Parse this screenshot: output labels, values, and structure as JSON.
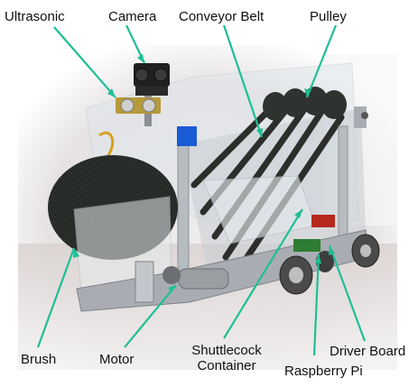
{
  "labels": {
    "ultrasonic": "Ultrasonic",
    "camera": "Camera",
    "conveyor_belt": "Conveyor Belt",
    "pulley": "Pulley",
    "brush": "Brush",
    "motor": "Motor",
    "shuttlecock_line1": "Shuttlecock",
    "shuttlecock_line2": "Container",
    "driver_board": "Driver Board",
    "raspberry_pi": "Raspberry Pi"
  },
  "colors": {
    "arrow": "#1fbf95",
    "label_text": "#111111",
    "brush_bristle": "#2b2f2a",
    "frame_metal": "#a9adb3",
    "acrylic": "#dfe6ec",
    "blue_tape": "#1a5bd6",
    "wheel": "#4a4a4a"
  }
}
